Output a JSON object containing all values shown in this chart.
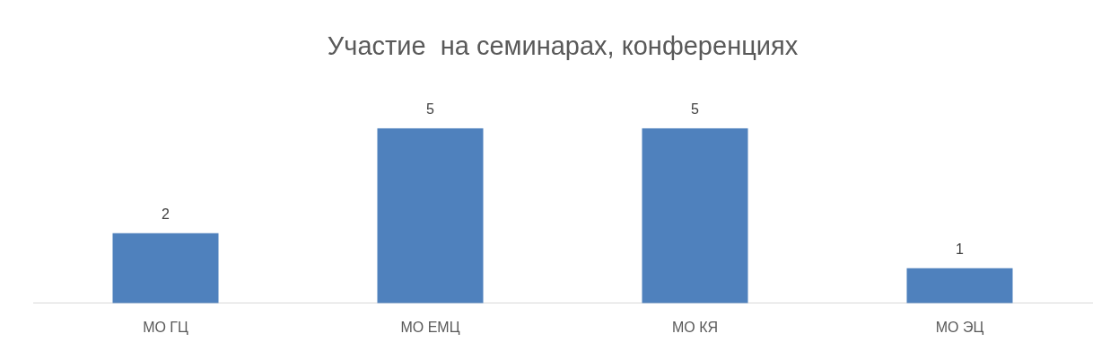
{
  "chart_data": {
    "type": "bar",
    "title": "Участие  на семинарах, конференциях",
    "categories": [
      "МО ГЦ",
      "МО ЕМЦ",
      "МО КЯ",
      "МО ЭЦ"
    ],
    "values": [
      2,
      5,
      5,
      1
    ],
    "color": "#4f81bd",
    "data_labels": true,
    "grid": false,
    "legend": false
  }
}
